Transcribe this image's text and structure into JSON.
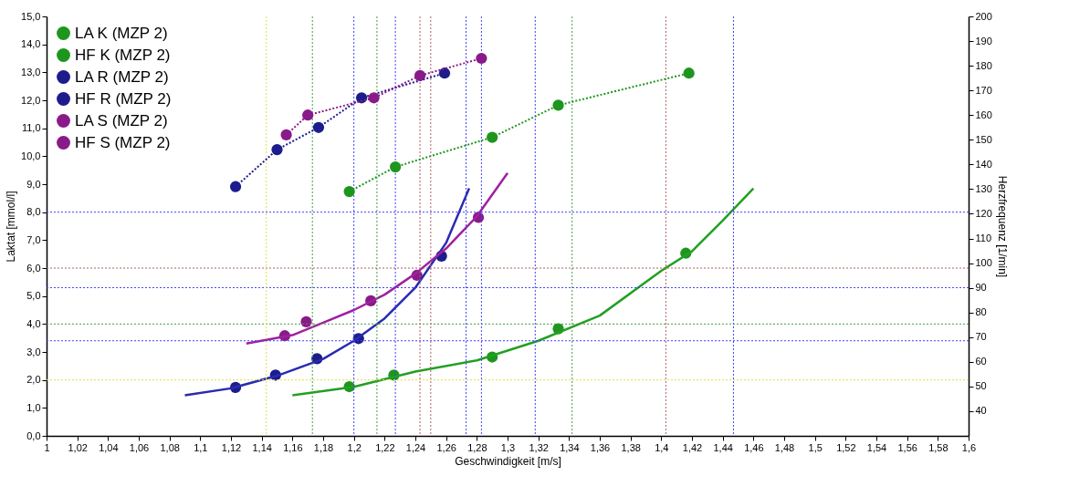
{
  "chart_data": {
    "type": "line",
    "xlabel": "Geschwindigkeit [m/s]",
    "ylabel": "Laktat [mmol/l]",
    "y2label": "Herzfrequenz [1/min]",
    "xlim": [
      1,
      1.6
    ],
    "xticks": [
      1,
      {
        "value": 1.02,
        "label": "1,02"
      },
      {
        "value": 1.04,
        "label": "1,04"
      },
      {
        "value": 1.06,
        "label": "1,06"
      },
      {
        "value": 1.08,
        "label": "1,08"
      },
      {
        "value": 1.1,
        "label": "1,1"
      },
      {
        "value": 1.12,
        "label": "1,12"
      },
      {
        "value": 1.14,
        "label": "1,14"
      },
      {
        "value": 1.16,
        "label": "1,16"
      },
      {
        "value": 1.18,
        "label": "1,18"
      },
      {
        "value": 1.2,
        "label": "1,2"
      },
      {
        "value": 1.22,
        "label": "1,22"
      },
      {
        "value": 1.24,
        "label": "1,24"
      },
      {
        "value": 1.26,
        "label": "1,26"
      },
      {
        "value": 1.28,
        "label": "1,28"
      },
      {
        "value": 1.3,
        "label": "1,3"
      },
      {
        "value": 1.32,
        "label": "1,32"
      },
      {
        "value": 1.34,
        "label": "1,34"
      },
      {
        "value": 1.36,
        "label": "1,36"
      },
      {
        "value": 1.38,
        "label": "1,38"
      },
      {
        "value": 1.4,
        "label": "1,4"
      },
      {
        "value": 1.42,
        "label": "1,42"
      },
      {
        "value": 1.44,
        "label": "1,44"
      },
      {
        "value": 1.46,
        "label": "1,46"
      },
      {
        "value": 1.48,
        "label": "1,48"
      },
      {
        "value": 1.5,
        "label": "1,5"
      },
      {
        "value": 1.52,
        "label": "1,52"
      },
      {
        "value": 1.54,
        "label": "1,54"
      },
      {
        "value": 1.56,
        "label": "1,56"
      },
      {
        "value": 1.58,
        "label": "1,58"
      },
      {
        "value": 1.6,
        "label": "1,6"
      }
    ],
    "ylim": [
      0,
      15
    ],
    "yticks": [
      {
        "value": 0,
        "label": "0,0"
      },
      {
        "value": 1,
        "label": "1,0"
      },
      {
        "value": 2,
        "label": "2,0"
      },
      {
        "value": 3,
        "label": "3,0"
      },
      {
        "value": 4,
        "label": "4,0"
      },
      {
        "value": 5,
        "label": "5,0"
      },
      {
        "value": 6,
        "label": "6,0"
      },
      {
        "value": 7,
        "label": "7,0"
      },
      {
        "value": 8,
        "label": "8,0"
      },
      {
        "value": 9,
        "label": "9,0"
      },
      {
        "value": 10,
        "label": "10,0"
      },
      {
        "value": 11,
        "label": "11,0"
      },
      {
        "value": 12,
        "label": "12,0"
      },
      {
        "value": 13,
        "label": "13,0"
      },
      {
        "value": 14,
        "label": "14,0"
      },
      {
        "value": 15,
        "label": "15,0"
      }
    ],
    "y2lim": [
      30,
      200
    ],
    "y2ticks": [
      40,
      50,
      60,
      70,
      80,
      90,
      100,
      110,
      120,
      130,
      140,
      150,
      160,
      170,
      180,
      190,
      200
    ],
    "legend": "top left",
    "grid": false,
    "series": [
      {
        "name": "LA K (MZP 2)",
        "type": "scatter",
        "marker": "circle",
        "color": "#1e961e",
        "x": [
          1.197,
          1.226,
          1.29,
          1.333,
          1.416
        ],
        "values": [
          1.76,
          2.17,
          2.82,
          3.83,
          6.53
        ]
      },
      {
        "name": "HF K (MZP 2)",
        "type": "line",
        "axis": "y2",
        "line_style": "dotted",
        "marker": "circle",
        "color": "#1e961e",
        "x": [
          1.197,
          1.227,
          1.29,
          1.333,
          1.418
        ],
        "values": [
          129,
          139,
          151,
          164,
          177
        ]
      },
      {
        "name": "LA R (MZP 2)",
        "type": "scatter",
        "marker": "circle",
        "color": "#1c1c8c",
        "x": [
          1.123,
          1.149,
          1.176,
          1.203,
          1.257
        ],
        "values": [
          1.73,
          2.17,
          2.76,
          3.48,
          6.43
        ]
      },
      {
        "name": "HF R (MZP 2)",
        "type": "line",
        "axis": "y2",
        "line_style": "dotted",
        "marker": "circle",
        "color": "#1c1c8c",
        "x": [
          1.123,
          1.15,
          1.177,
          1.205,
          1.259
        ],
        "values": [
          131,
          146,
          155,
          167,
          177
        ]
      },
      {
        "name": "LA S (MZP 2)",
        "type": "scatter",
        "marker": "circle",
        "color": "#8a1a8a",
        "x": [
          1.155,
          1.169,
          1.211,
          1.241,
          1.281
        ],
        "values": [
          3.58,
          4.08,
          4.83,
          5.74,
          7.81
        ]
      },
      {
        "name": "HF S (MZP 2)",
        "type": "line",
        "axis": "y2",
        "line_style": "dotted",
        "marker": "circle",
        "color": "#8a1a8a",
        "x": [
          1.156,
          1.17,
          1.213,
          1.243,
          1.283
        ],
        "values": [
          152,
          160,
          167,
          176,
          183
        ]
      },
      {
        "type": "line",
        "line_style": "solid",
        "marker": "none",
        "color": "#22a022",
        "x": [
          1.16,
          1.2,
          1.24,
          1.28,
          1.32,
          1.36,
          1.4,
          1.42,
          1.44,
          1.46
        ],
        "values": [
          1.45,
          1.75,
          2.3,
          2.7,
          3.4,
          4.3,
          5.9,
          6.6,
          7.7,
          8.85
        ]
      },
      {
        "type": "line",
        "line_style": "solid",
        "marker": "none",
        "color": "#2a2ab0",
        "x": [
          1.09,
          1.12,
          1.15,
          1.18,
          1.2,
          1.22,
          1.24,
          1.26,
          1.275
        ],
        "values": [
          1.45,
          1.7,
          2.15,
          2.75,
          3.4,
          4.2,
          5.3,
          6.9,
          8.85
        ]
      },
      {
        "type": "line",
        "line_style": "solid",
        "marker": "none",
        "color": "#a020a0",
        "x": [
          1.13,
          1.16,
          1.18,
          1.2,
          1.22,
          1.24,
          1.26,
          1.28,
          1.3
        ],
        "values": [
          3.3,
          3.6,
          4.05,
          4.5,
          5.05,
          5.8,
          6.7,
          7.85,
          9.4
        ]
      }
    ],
    "ref_lines": [
      {
        "axis": "y",
        "value": 8,
        "color": "#4040ff",
        "line_style": "dotted"
      },
      {
        "axis": "y",
        "value": 6,
        "color": "#b06060",
        "line_style": "dotted"
      },
      {
        "axis": "y",
        "value": 5.3,
        "color": "#4040ff",
        "line_style": "dotted"
      },
      {
        "axis": "y",
        "value": 4,
        "color": "#40a040",
        "line_style": "dotted"
      },
      {
        "axis": "y",
        "value": 3.4,
        "color": "#4040ff",
        "line_style": "dotted"
      },
      {
        "axis": "y",
        "value": 2,
        "color": "#e0e040",
        "line_style": "dotted"
      },
      {
        "axis": "x",
        "value": 1.143,
        "color": "#e0e040",
        "line_style": "dotted"
      },
      {
        "axis": "x",
        "value": 1.173,
        "color": "#40a040",
        "line_style": "dotted"
      },
      {
        "axis": "x",
        "value": 1.2,
        "color": "#4040ff",
        "line_style": "dotted"
      },
      {
        "axis": "x",
        "value": 1.215,
        "color": "#40a040",
        "line_style": "dotted"
      },
      {
        "axis": "x",
        "value": 1.227,
        "color": "#4040ff",
        "line_style": "dotted"
      },
      {
        "axis": "x",
        "value": 1.243,
        "color": "#b06060",
        "line_style": "dotted"
      },
      {
        "axis": "x",
        "value": 1.25,
        "color": "#b06060",
        "line_style": "dotted"
      },
      {
        "axis": "x",
        "value": 1.273,
        "color": "#4040ff",
        "line_style": "dotted"
      },
      {
        "axis": "x",
        "value": 1.283,
        "color": "#4040ff",
        "line_style": "dotted"
      },
      {
        "axis": "x",
        "value": 1.318,
        "color": "#4040ff",
        "line_style": "dotted"
      },
      {
        "axis": "x",
        "value": 1.342,
        "color": "#40a040",
        "line_style": "dotted"
      },
      {
        "axis": "x",
        "value": 1.403,
        "color": "#b06060",
        "line_style": "dotted"
      },
      {
        "axis": "x",
        "value": 1.447,
        "color": "#4040ff",
        "line_style": "dotted"
      }
    ]
  }
}
